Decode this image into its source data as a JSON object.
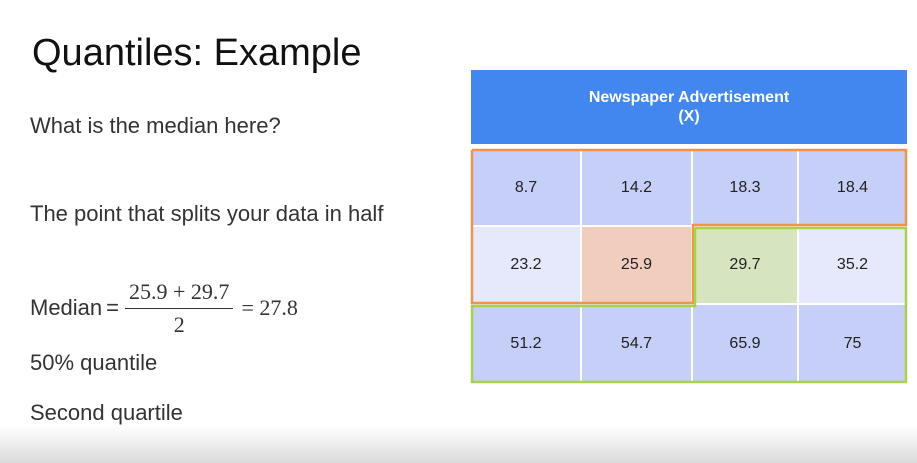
{
  "slide": {
    "title": "Quantiles: Example",
    "question": "What is the median here?",
    "definition": "The point that splits your data in half",
    "formula": {
      "label": "Median",
      "equals": "=",
      "numerator": "25.9 + 29.7",
      "denominator": "2",
      "result": "= 27.8"
    },
    "quantile_text": "50% quantile",
    "quartile_text": "Second quartile"
  },
  "table": {
    "header_line1": "Newspaper Advertisement",
    "header_line2": "(X)",
    "rows": [
      [
        "8.7",
        "14.2",
        "18.3",
        "18.4"
      ],
      [
        "23.2",
        "25.9",
        "29.7",
        "35.2"
      ],
      [
        "51.2",
        "54.7",
        "65.9",
        "75"
      ]
    ],
    "highlight_colors": {
      "lower_half_outline": "#f0944a",
      "upper_half_outline": "#a8d24a",
      "median_low_cell": "#f0cdbc",
      "median_high_cell": "#d6e4bf",
      "header": "#4286f0"
    }
  }
}
